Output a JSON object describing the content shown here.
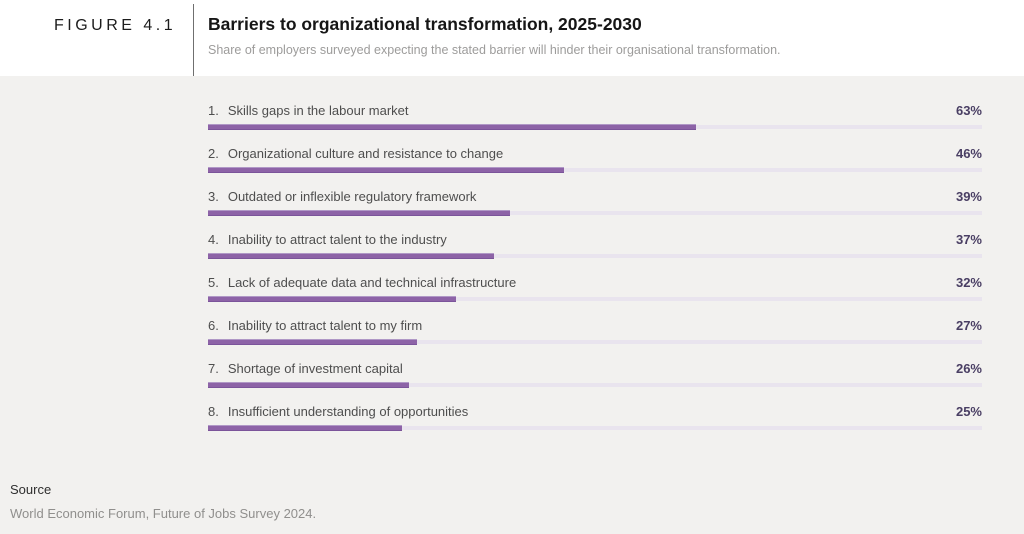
{
  "figure": {
    "label": "FIGURE 4.1"
  },
  "header": {
    "title": "Barriers to organizational transformation, 2025-2030",
    "subtitle": "Share of employers surveyed expecting the stated barrier will hinder their organisational transformation."
  },
  "chart_data": {
    "type": "bar",
    "orientation": "horizontal",
    "title": "Barriers to organizational transformation, 2025-2030",
    "subtitle": "Share of employers surveyed expecting the stated barrier will hinder their organisational transformation.",
    "categories": [
      "Skills gaps in the labour market",
      "Organizational culture and resistance to change",
      "Outdated or inflexible regulatory framework",
      "Inability to attract talent to the industry",
      "Lack of adequate data and technical infrastructure",
      "Inability to attract talent to my firm",
      "Shortage of investment capital",
      "Insufficient understanding of opportunities"
    ],
    "values": [
      63,
      46,
      39,
      37,
      32,
      27,
      26,
      25
    ],
    "unit": "%",
    "xlabel": "",
    "ylabel": "",
    "xlim": [
      0,
      100
    ],
    "grid": false,
    "legend": false,
    "value_labels_position": "right",
    "bar_color": "#8d63a7",
    "track_color": "#e9e4ee",
    "value_color": "#493e63",
    "panel_background": "#f2f1ef"
  },
  "rows": [
    {
      "rank": "1.",
      "label": "Skills gaps in the labour market",
      "value": 63,
      "value_label": "63%"
    },
    {
      "rank": "2.",
      "label": "Organizational culture and resistance to change",
      "value": 46,
      "value_label": "46%"
    },
    {
      "rank": "3.",
      "label": "Outdated or inflexible regulatory framework",
      "value": 39,
      "value_label": "39%"
    },
    {
      "rank": "4.",
      "label": "Inability to attract talent to the industry",
      "value": 37,
      "value_label": "37%"
    },
    {
      "rank": "5.",
      "label": "Lack of adequate data and technical infrastructure",
      "value": 32,
      "value_label": "32%"
    },
    {
      "rank": "6.",
      "label": "Inability to attract talent to my firm",
      "value": 27,
      "value_label": "27%"
    },
    {
      "rank": "7.",
      "label": "Shortage of investment capital",
      "value": 26,
      "value_label": "26%"
    },
    {
      "rank": "8.",
      "label": "Insufficient understanding of opportunities",
      "value": 25,
      "value_label": "25%"
    }
  ],
  "footer": {
    "source_label": "Source",
    "source_text": "World Economic Forum, Future of Jobs Survey 2024."
  }
}
